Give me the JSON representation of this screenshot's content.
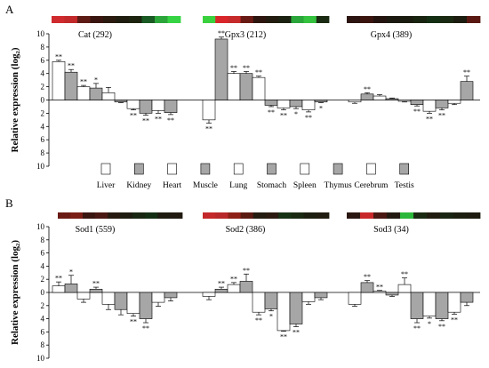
{
  "chart_data": {
    "type": "bar",
    "ylabel": "Relative expression (log₂)",
    "ylim": [
      -10,
      10
    ],
    "yticks": [
      10,
      8,
      6,
      4,
      2,
      0,
      -2,
      -4,
      -6,
      -8,
      -10
    ],
    "ytick_labels": [
      "10",
      "8",
      "6",
      "4",
      "2",
      "0",
      "2",
      "4",
      "6",
      "8",
      "10"
    ],
    "grid": false,
    "legend_position": "bottom",
    "categories": [
      "Liver",
      "Kidney",
      "Heart",
      "Muscle",
      "Lung",
      "Stomach",
      "Spleen",
      "Thymus",
      "Cerebrum",
      "Testis"
    ],
    "category_fills": [
      "#ffffff",
      "#a6a6a6",
      "#ffffff",
      "#a6a6a6",
      "#ffffff",
      "#a6a6a6",
      "#ffffff",
      "#a6a6a6",
      "#ffffff",
      "#a6a6a6"
    ],
    "panels": [
      {
        "label": "A",
        "series": [
          {
            "name": "Cat (292)",
            "values": [
              5.8,
              4.2,
              2.0,
              1.8,
              1.1,
              -0.3,
              -1.3,
              -2.0,
              -1.6,
              -1.9
            ],
            "errors": [
              0.2,
              0.4,
              0.2,
              0.7,
              0.8,
              0.1,
              0.2,
              0.3,
              0.4,
              0.3
            ],
            "significance": [
              "**",
              "**",
              "**",
              "*",
              "",
              "",
              "**",
              "**",
              "**",
              "**"
            ],
            "heatmap_colors": [
              "#cf2a2e",
              "#c1292b",
              "#5e1b15",
              "#3a1510",
              "#2a1a10",
              "#1f1d10",
              "#1c2410",
              "#1a5a24",
              "#2ca63a",
              "#36d444"
            ]
          },
          {
            "name": "Gpx3 (212)",
            "values": [
              -3.0,
              9.2,
              4.0,
              4.0,
              3.4,
              -0.8,
              -1.2,
              -1.0,
              -1.5,
              -0.3
            ],
            "errors": [
              0.5,
              0.3,
              0.3,
              0.3,
              0.2,
              0.2,
              0.3,
              0.3,
              0.3,
              0.1
            ],
            "significance": [
              "**",
              "**",
              "**",
              "**",
              "**",
              "**",
              "**",
              "*",
              "**",
              "*"
            ],
            "heatmap_colors": [
              "#3ad13e",
              "#d9262b",
              "#c62a2a",
              "#6a1a14",
              "#2e1610",
              "#221c10",
              "#1c2212",
              "#2aa63a",
              "#35c23f",
              "#1b2a12"
            ]
          },
          {
            "name": "Gpx4 (389)",
            "values": [
              -0.3,
              0.9,
              0.6,
              0.2,
              -0.2,
              -0.7,
              -1.7,
              -1.2,
              -0.5,
              2.8
            ],
            "errors": [
              0.2,
              0.2,
              0.2,
              0.1,
              0.1,
              0.2,
              0.3,
              0.3,
              0.2,
              0.8
            ],
            "significance": [
              "",
              "**",
              "",
              "",
              "",
              "**",
              "**",
              "**",
              "",
              "**"
            ],
            "heatmap_colors": [
              "#2c1410",
              "#3a1510",
              "#241410",
              "#1c1a10",
              "#1a1c10",
              "#182410",
              "#142e14",
              "#1a2a12",
              "#1c1c10",
              "#5a1812"
            ]
          }
        ]
      },
      {
        "label": "B",
        "series": [
          {
            "name": "Sod1 (559)",
            "values": [
              1.0,
              1.3,
              -1.0,
              0.5,
              -1.8,
              -2.6,
              -3.2,
              -4.0,
              -1.5,
              -0.8
            ],
            "errors": [
              0.6,
              1.3,
              0.5,
              0.3,
              0.8,
              0.8,
              0.4,
              0.6,
              0.6,
              0.5
            ],
            "significance": [
              "**",
              "*",
              "",
              "**",
              "",
              "",
              "**",
              "**",
              "",
              ""
            ],
            "heatmap_colors": [
              "#6a1a14",
              "#7a1e16",
              "#3a1610",
              "#4a1812",
              "#261a10",
              "#1e1c10",
              "#182612",
              "#142e14",
              "#1e1c10",
              "#201a10"
            ]
          },
          {
            "name": "Sod2 (386)",
            "values": [
              -0.6,
              0.5,
              1.2,
              1.7,
              -3.0,
              -2.5,
              -5.8,
              -4.8,
              -1.4,
              -0.8
            ],
            "errors": [
              0.5,
              0.3,
              0.3,
              1.1,
              0.4,
              0.3,
              0.1,
              0.4,
              0.4,
              0.3
            ],
            "significance": [
              "",
              "**",
              "**",
              "**",
              "**",
              "*",
              "**",
              "**",
              "",
              ""
            ],
            "heatmap_colors": [
              "#c4282a",
              "#b8282a",
              "#8e2018",
              "#5a1a12",
              "#241c10",
              "#2a1a10",
              "#163214",
              "#1a2a12",
              "#1c1e10",
              "#201c10"
            ]
          },
          {
            "name": "Sod3 (34)",
            "values": [
              -1.8,
              1.5,
              0.2,
              -0.4,
              1.2,
              -4.0,
              -3.6,
              -4.0,
              -3.0,
              -1.5
            ],
            "errors": [
              0.3,
              0.3,
              0.1,
              0.2,
              1.0,
              0.6,
              0.3,
              0.3,
              0.3,
              0.5
            ],
            "significance": [
              "",
              "**",
              "**",
              "",
              "**",
              "**",
              "*",
              "**",
              "**",
              ""
            ],
            "heatmap_colors": [
              "#2a1610",
              "#c8282a",
              "#4a1812",
              "#221a10",
              "#2ab83a",
              "#1a2a12",
              "#201c10",
              "#1a2412",
              "#1c1e10",
              "#1e1c10"
            ]
          }
        ]
      }
    ]
  }
}
